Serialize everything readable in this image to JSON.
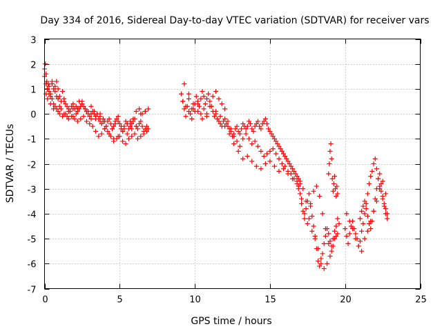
{
  "chart_data": {
    "type": "scatter",
    "title": "Day 334 of 2016, Sidereal Day-to-day VTEC variation (SDTVAR) for receiver vars",
    "xlabel": "GPS time / hours",
    "ylabel": "SDTVAR / TECUs",
    "xlim": [
      0,
      25
    ],
    "ylim": [
      -7,
      3
    ],
    "xticks": [
      0,
      5,
      10,
      15,
      20,
      25
    ],
    "yticks": [
      3,
      2,
      1,
      0,
      -1,
      -2,
      -3,
      -4,
      -5,
      -6,
      -7
    ],
    "grid": true,
    "marker": "+",
    "series": [
      {
        "name": "SDTVAR",
        "color": "#ff0000",
        "x": [
          0.0,
          0.05,
          0.1,
          0.15,
          0.2,
          0.25,
          0.3,
          0.4,
          0.5,
          0.6,
          0.7,
          0.8,
          0.9,
          1.0,
          1.1,
          1.2,
          1.3,
          1.4,
          1.5,
          1.6,
          1.7,
          1.8,
          1.9,
          2.0,
          2.1,
          2.2,
          2.3,
          2.4,
          2.5,
          2.6,
          2.7,
          2.8,
          2.9,
          3.0,
          3.1,
          3.2,
          3.3,
          3.4,
          3.5,
          3.6,
          3.7,
          3.8,
          3.9,
          4.0,
          4.1,
          4.2,
          4.3,
          4.4,
          4.5,
          4.6,
          4.7,
          4.8,
          4.9,
          5.0,
          5.1,
          5.2,
          5.3,
          5.4,
          5.5,
          5.6,
          5.7,
          5.8,
          5.9,
          6.0,
          6.1,
          6.2,
          6.3,
          6.4,
          6.5,
          6.6,
          6.7,
          6.8,
          6.9,
          0.0,
          0.1,
          0.2,
          0.3,
          0.4,
          0.5,
          0.6,
          0.7,
          0.8,
          0.9,
          1.0,
          1.2,
          1.4,
          1.6,
          1.8,
          2.0,
          2.2,
          2.4,
          2.6,
          2.8,
          3.0,
          3.2,
          3.4,
          3.6,
          3.8,
          4.0,
          4.2,
          4.4,
          4.6,
          4.8,
          5.0,
          5.2,
          5.4,
          5.6,
          5.8,
          6.0,
          6.2,
          6.4,
          6.6,
          6.8,
          0.1,
          0.3,
          0.5,
          0.7,
          0.9,
          1.1,
          1.3,
          1.5,
          1.7,
          1.9,
          2.1,
          2.3,
          2.5,
          2.7,
          2.9,
          3.1,
          3.3,
          3.5,
          3.7,
          3.9,
          4.1,
          4.3,
          4.5,
          4.7,
          4.9,
          5.1,
          5.3,
          5.5,
          5.7,
          5.9,
          6.1,
          6.3,
          6.5,
          6.7,
          6.9,
          0.2,
          0.4,
          0.6,
          0.8,
          1.0,
          1.3,
          1.6,
          1.9,
          2.2,
          2.5,
          2.8,
          3.1,
          3.4,
          3.7,
          4.0,
          4.3,
          4.6,
          4.9,
          5.2,
          5.5,
          5.8,
          6.1,
          6.4,
          6.7,
          9.1,
          9.2,
          9.3,
          9.4,
          9.5,
          9.6,
          9.7,
          9.8,
          9.9,
          10.0,
          10.1,
          10.2,
          10.3,
          10.4,
          10.5,
          10.6,
          10.7,
          10.8,
          10.9,
          11.0,
          11.1,
          11.2,
          11.3,
          11.4,
          11.5,
          11.6,
          11.7,
          11.8,
          11.9,
          12.0,
          12.1,
          12.2,
          12.3,
          12.4,
          12.5,
          12.6,
          12.7,
          12.8,
          12.9,
          13.0,
          13.1,
          13.2,
          13.3,
          13.4,
          13.5,
          13.6,
          13.7,
          13.8,
          13.9,
          14.0,
          14.1,
          14.2,
          14.3,
          14.4,
          14.5,
          14.6,
          14.7,
          14.8,
          14.9,
          15.0,
          15.1,
          15.2,
          15.3,
          15.4,
          15.5,
          15.6,
          15.7,
          15.8,
          15.9,
          16.0,
          16.1,
          16.2,
          16.3,
          16.4,
          16.5,
          16.6,
          16.7,
          16.8,
          16.9,
          17.0,
          9.2,
          9.4,
          9.6,
          9.8,
          10.0,
          10.2,
          10.4,
          10.6,
          10.8,
          11.0,
          11.2,
          11.4,
          11.6,
          11.8,
          12.0,
          12.2,
          12.4,
          12.6,
          12.8,
          13.0,
          13.2,
          13.4,
          13.6,
          13.8,
          14.0,
          14.2,
          14.4,
          14.6,
          14.8,
          15.0,
          15.2,
          15.4,
          15.6,
          15.8,
          16.0,
          16.2,
          16.4,
          16.6,
          16.8,
          9.3,
          9.6,
          9.9,
          10.2,
          10.5,
          10.8,
          11.1,
          11.4,
          11.7,
          12.0,
          12.3,
          12.6,
          12.9,
          13.2,
          13.5,
          13.8,
          14.1,
          14.4,
          14.7,
          15.0,
          15.3,
          15.6,
          15.9,
          16.2,
          16.5,
          16.8,
          16.9,
          17.0,
          17.1,
          17.2,
          17.3,
          17.4,
          17.5,
          17.6,
          17.7,
          17.8,
          17.9,
          18.0,
          18.1,
          18.2,
          18.3,
          18.4,
          18.5,
          18.6,
          18.7,
          18.8,
          18.9,
          19.0,
          19.1,
          19.2,
          19.3,
          19.4,
          19.5,
          19.6,
          16.9,
          17.1,
          17.3,
          17.5,
          17.7,
          17.9,
          18.1,
          18.3,
          18.5,
          18.7,
          18.9,
          19.1,
          19.3,
          19.5,
          17.0,
          17.2,
          17.4,
          17.6,
          17.8,
          18.0,
          18.2,
          18.4,
          18.6,
          18.8,
          19.0,
          19.2,
          19.4,
          18.9,
          18.95,
          19.0,
          19.05,
          19.1,
          19.15,
          19.2,
          19.25,
          19.3,
          19.35,
          19.4,
          19.45,
          19.5,
          20.0,
          20.1,
          20.2,
          20.3,
          20.4,
          20.5,
          20.6,
          20.7,
          20.8,
          20.9,
          21.0,
          21.1,
          21.2,
          21.3,
          21.4,
          21.5,
          21.6,
          21.7,
          21.8,
          21.9,
          22.0,
          22.1,
          22.2,
          22.3,
          22.4,
          22.5,
          22.6,
          22.7,
          22.8,
          20.1,
          20.3,
          20.5,
          20.7,
          20.9,
          21.1,
          21.3,
          21.5,
          21.7,
          21.9,
          22.1,
          22.3,
          22.5,
          22.7,
          21.0,
          21.1,
          21.2,
          21.3,
          21.4,
          21.5,
          21.6,
          21.7,
          21.8,
          21.9,
          22.0,
          22.1,
          22.2,
          22.3,
          22.4,
          22.5,
          22.6,
          22.7,
          22.8
        ],
        "y": [
          1.8,
          2.0,
          1.6,
          1.3,
          1.0,
          1.2,
          0.9,
          0.8,
          1.2,
          1.0,
          1.1,
          1.3,
          1.0,
          0.7,
          0.5,
          0.9,
          0.6,
          0.4,
          0.3,
          0.2,
          0.1,
          0.3,
          0.4,
          0.2,
          0.0,
          0.1,
          0.2,
          0.3,
          0.5,
          0.3,
          0.2,
          0.1,
          0.0,
          -0.1,
          -0.2,
          0.1,
          0.0,
          -0.1,
          0.0,
          -0.2,
          -0.3,
          -0.4,
          -0.2,
          -0.3,
          -0.5,
          -0.3,
          -0.2,
          -0.4,
          -0.6,
          -0.5,
          -0.3,
          -0.2,
          -0.1,
          -0.4,
          -0.6,
          -0.7,
          -0.5,
          -0.3,
          -0.4,
          -0.6,
          -0.5,
          -0.4,
          -0.3,
          -0.2,
          -0.5,
          -0.6,
          -0.4,
          -0.3,
          -0.5,
          -0.7,
          -0.6,
          -0.5,
          -0.6,
          1.5,
          1.2,
          1.0,
          0.8,
          0.7,
          0.6,
          0.4,
          0.3,
          0.2,
          0.1,
          0.0,
          -0.1,
          0.0,
          -0.2,
          -0.1,
          -0.2,
          -0.3,
          -0.2,
          -0.1,
          -0.3,
          -0.4,
          -0.5,
          -0.7,
          -0.9,
          -0.8,
          -0.6,
          -0.7,
          -0.9,
          -1.1,
          -1.0,
          -0.9,
          -1.1,
          -1.2,
          -1.0,
          -0.9,
          -0.8,
          -1.0,
          -0.9,
          -0.8,
          -0.7,
          0.8,
          1.1,
          1.3,
          0.9,
          0.6,
          0.2,
          0.0,
          -0.1,
          0.1,
          0.2,
          0.3,
          0.5,
          0.4,
          0.2,
          0.1,
          0.3,
          0.1,
          0.0,
          -0.1,
          -0.3,
          -0.5,
          -0.8,
          -0.6,
          -0.4,
          -0.3,
          -0.5,
          -0.6,
          -0.4,
          -0.3,
          -0.2,
          0.1,
          0.2,
          0.0,
          0.1,
          0.2,
          0.6,
          0.4,
          0.2,
          0.7,
          0.3,
          0.5,
          0.1,
          -0.1,
          0.2,
          0.4,
          0.1,
          0.0,
          -0.2,
          0.0,
          -0.6,
          -0.8,
          -1.0,
          -0.9,
          -0.7,
          -0.8,
          -0.6,
          -0.5,
          0.0,
          0.1,
          0.8,
          0.5,
          0.2,
          -0.1,
          0.3,
          0.1,
          0.0,
          -0.2,
          0.2,
          0.4,
          0.7,
          0.5,
          0.3,
          0.6,
          0.9,
          0.7,
          0.4,
          0.6,
          0.8,
          0.5,
          0.3,
          0.1,
          -0.1,
          0.0,
          -0.2,
          -0.3,
          -0.4,
          -0.5,
          -0.3,
          -0.2,
          -0.4,
          -0.5,
          -0.6,
          -0.7,
          -0.9,
          -0.8,
          -0.6,
          -0.5,
          -0.7,
          -0.8,
          -0.6,
          -0.4,
          -0.5,
          -0.6,
          -0.5,
          -0.3,
          -0.4,
          -0.6,
          -0.7,
          -0.5,
          -0.4,
          -0.3,
          -0.5,
          -0.6,
          -0.4,
          -0.3,
          -0.2,
          -0.4,
          -0.6,
          -0.7,
          -0.8,
          -0.9,
          -1.0,
          -1.1,
          -1.2,
          -1.3,
          -1.4,
          -1.5,
          -1.6,
          -1.7,
          -1.8,
          -1.9,
          -2.0,
          -2.1,
          -2.2,
          -2.3,
          -2.4,
          -2.5,
          -2.6,
          -2.8,
          0.5,
          0.3,
          0.6,
          0.2,
          0.1,
          0.4,
          0.0,
          0.2,
          -0.1,
          0.3,
          0.7,
          0.9,
          0.6,
          0.4,
          0.2,
          -0.3,
          -0.6,
          -0.9,
          -1.1,
          -1.3,
          -1.0,
          -0.8,
          -1.0,
          -1.2,
          -1.1,
          -1.3,
          -1.5,
          -1.7,
          -1.6,
          -1.5,
          -1.4,
          -1.6,
          -1.8,
          -2.0,
          -2.1,
          -2.3,
          -2.4,
          -2.6,
          -2.8,
          1.2,
          0.8,
          0.4,
          0.1,
          -0.2,
          0.0,
          0.3,
          0.1,
          -0.1,
          -0.5,
          -0.8,
          -1.2,
          -1.5,
          -1.8,
          -1.7,
          -1.9,
          -2.1,
          -2.2,
          -2.0,
          -1.9,
          -2.1,
          -2.3,
          -2.2,
          -2.4,
          -2.6,
          -2.7,
          -2.9,
          -3.2,
          -3.6,
          -3.9,
          -4.2,
          -3.8,
          -3.5,
          -3.2,
          -3.6,
          -4.1,
          -4.5,
          -4.9,
          -5.4,
          -5.9,
          -6.1,
          -6.0,
          -5.6,
          -5.2,
          -4.9,
          -4.6,
          -4.8,
          -5.1,
          -5.3,
          -5.0,
          -4.7,
          -4.5,
          -4.2,
          -4.4,
          -3.0,
          -3.4,
          -4.0,
          -4.4,
          -3.7,
          -3.1,
          -2.9,
          -3.3,
          -4.0,
          -4.6,
          -5.2,
          -5.5,
          -5.0,
          -4.8,
          -2.7,
          -3.0,
          -3.5,
          -4.2,
          -4.7,
          -5.0,
          -5.4,
          -5.8,
          -6.2,
          -6.0,
          -5.7,
          -5.3,
          -4.9,
          -2.4,
          -2.0,
          -1.5,
          -1.2,
          -1.8,
          -2.6,
          -3.1,
          -2.8,
          -2.5,
          -3.0,
          -3.3,
          -2.9,
          -3.2,
          -4.6,
          -4.9,
          -5.2,
          -4.8,
          -4.5,
          -4.3,
          -4.6,
          -4.8,
          -5.0,
          -5.3,
          -5.1,
          -4.7,
          -4.4,
          -4.0,
          -3.6,
          -3.2,
          -2.8,
          -2.5,
          -2.3,
          -2.0,
          -1.8,
          -2.2,
          -2.6,
          -2.9,
          -3.1,
          -3.4,
          -3.6,
          -3.8,
          -4.0,
          -4.0,
          -4.3,
          -4.6,
          -5.0,
          -5.3,
          -5.5,
          -5.0,
          -4.7,
          -4.3,
          -3.9,
          -3.5,
          -3.0,
          -2.7,
          -3.2,
          -4.2,
          -3.9,
          -3.7,
          -3.5,
          -3.8,
          -4.1,
          -4.4,
          -4.6,
          -4.3,
          -3.9,
          -3.4,
          -3.0,
          -2.6,
          -2.4,
          -2.8,
          -3.3,
          -3.7,
          -4.0,
          -4.2
        ]
      }
    ]
  }
}
